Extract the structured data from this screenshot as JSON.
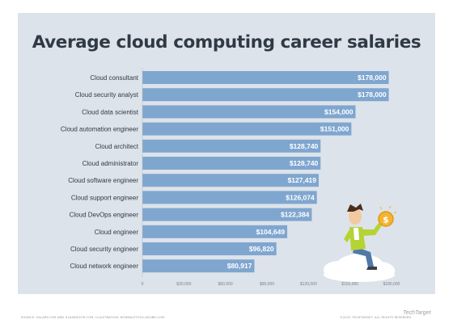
{
  "chart_data": {
    "type": "bar",
    "orientation": "horizontal",
    "title": "Average cloud computing career salaries",
    "categories": [
      "Cloud consultant",
      "Cloud security analyst",
      "Cloud data scientist",
      "Cloud automation engineer",
      "Cloud architect",
      "Cloud administrator",
      "Cloud software engineer",
      "Cloud support engineer",
      "Cloud DevOps engineer",
      "Cloud engineer",
      "Cloud security engineer",
      "Cloud network engineer"
    ],
    "values": [
      178000,
      178000,
      154000,
      151000,
      128740,
      128740,
      127419,
      126074,
      122384,
      104649,
      96820,
      80917
    ],
    "value_labels": [
      "$178,000",
      "$178,000",
      "$154,000",
      "$151,000",
      "$128,740",
      "$128,740",
      "$127,419",
      "$126,074",
      "$122,384",
      "$104,649",
      "$96,820",
      "$80,917"
    ],
    "xlim": [
      0,
      180000
    ],
    "xticks": [
      0,
      30000,
      60000,
      90000,
      120000,
      150000,
      180000
    ],
    "xtick_labels": [
      "0",
      "$30,000",
      "$60,000",
      "$90,000",
      "$120,000",
      "$150,000",
      "$180,000"
    ],
    "xlabel": "",
    "ylabel": "",
    "grid": false,
    "legend": "none",
    "bar_color": "#7fa6cf"
  },
  "footer": {
    "source": "SOURCE: SALARY.COM AND GLASSDOOR.COM; ILLUSTRATION: NORMA/STOCK.ADOBE.COM",
    "copyright": "©2022 TECHTARGET. ALL RIGHTS RESERVED",
    "brand": "TechTarget"
  },
  "illustration": {
    "description_icon": "man-on-cloud-holding-dollar-coin-icon",
    "coin_symbol": "$"
  }
}
